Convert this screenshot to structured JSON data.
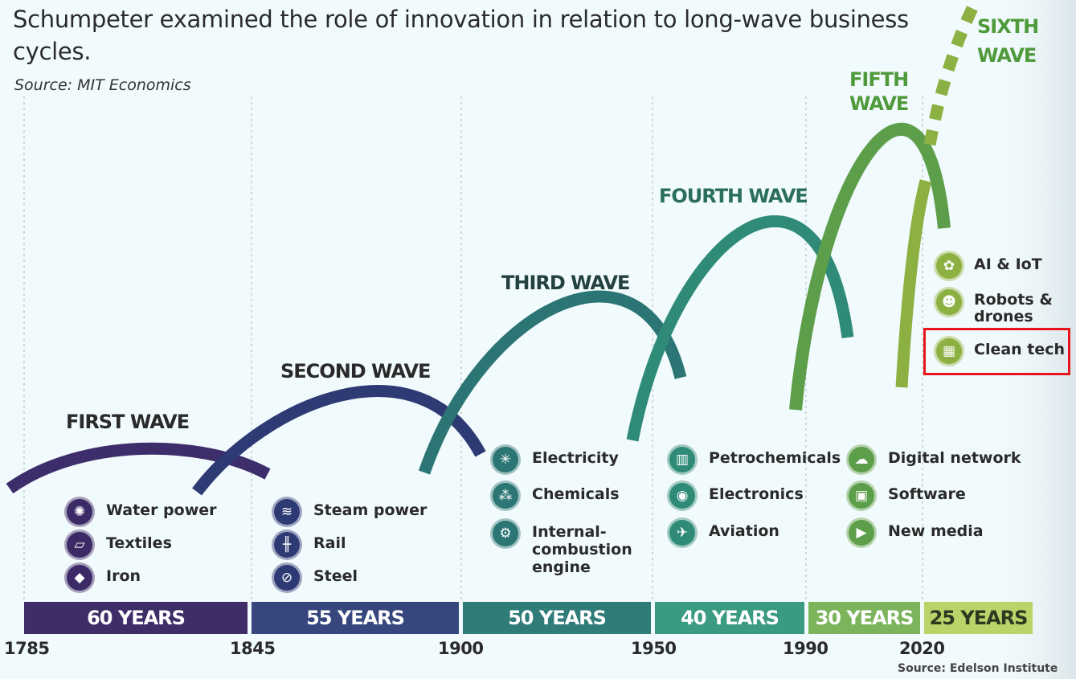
{
  "header": {
    "title": "Schumpeter examined the role of innovation in relation to long-wave business cycles.",
    "source": "Source: MIT Economics",
    "footer_source": "Source: Edelson Institute"
  },
  "colors": {
    "wave1": "#3d2d6b",
    "wave2": "#2e3a74",
    "wave3": "#2b7574",
    "wave4": "#2f8b78",
    "wave5": "#5c9e4a",
    "wave6": "#8db043",
    "bar1": "#3f2d68",
    "bar2": "#37477e",
    "bar3": "#2f7c78",
    "bar4": "#3b9a82",
    "bar5": "#7cb45c",
    "bar6": "#b9d469",
    "highlight": "#e8141c"
  },
  "waves": [
    {
      "label": "FIRST WAVE",
      "color": "#2a2a2a"
    },
    {
      "label": "SECOND WAVE",
      "color": "#2a2a2a"
    },
    {
      "label": "THIRD WAVE",
      "color": "#23413f"
    },
    {
      "label": "FOURTH WAVE",
      "color": "#2b6e5b"
    },
    {
      "label": "FIFTH WAVE",
      "color": "#4f9a3b"
    },
    {
      "label": "SIXTH WAVE",
      "color": "#4f9a3b"
    }
  ],
  "technologies": [
    [
      {
        "label": "Water power",
        "icon": "water-wheel-icon"
      },
      {
        "label": "Textiles",
        "icon": "textiles-icon"
      },
      {
        "label": "Iron",
        "icon": "iron-ingot-icon"
      }
    ],
    [
      {
        "label": "Steam power",
        "icon": "steam-engine-icon"
      },
      {
        "label": "Rail",
        "icon": "rail-icon"
      },
      {
        "label": "Steel",
        "icon": "steel-icon"
      }
    ],
    [
      {
        "label": "Electricity",
        "icon": "lightbulb-icon"
      },
      {
        "label": "Chemicals",
        "icon": "molecule-icon"
      },
      {
        "label": "Internal-combustion engine",
        "icon": "engine-icon"
      }
    ],
    [
      {
        "label": "Petrochemicals",
        "icon": "refinery-icon"
      },
      {
        "label": "Electronics",
        "icon": "chip-icon"
      },
      {
        "label": "Aviation",
        "icon": "airplane-icon"
      }
    ],
    [
      {
        "label": "Digital network",
        "icon": "cloud-network-icon"
      },
      {
        "label": "Software",
        "icon": "software-icon"
      },
      {
        "label": "New media",
        "icon": "media-player-icon"
      }
    ],
    [
      {
        "label": "AI & IoT",
        "icon": "brain-icon"
      },
      {
        "label": "Robots & drones",
        "icon": "robot-icon"
      },
      {
        "label": "Clean tech",
        "icon": "solar-panel-icon"
      }
    ]
  ],
  "durations": [
    "60 YEARS",
    "55 YEARS",
    "50 YEARS",
    "40 YEARS",
    "30 YEARS",
    "25 YEARS"
  ],
  "years": [
    "1785",
    "1845",
    "1900",
    "1950",
    "1990",
    "2020"
  ]
}
